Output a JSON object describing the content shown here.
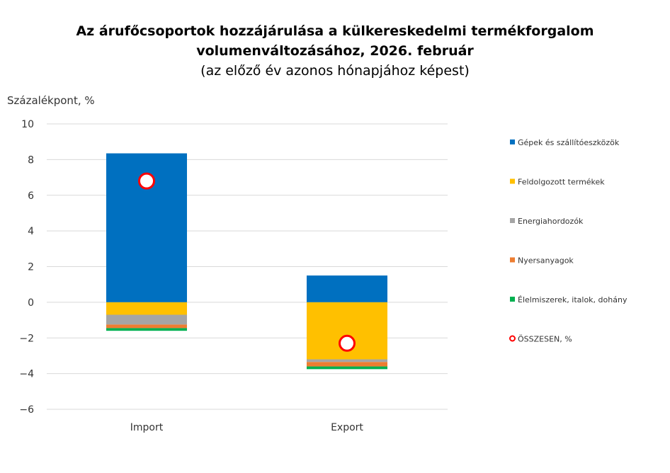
{
  "chart_data": {
    "type": "bar",
    "stacked": true,
    "title": "Az árufőcsoportok hozzájárulása a külkereskedelmi termékforgalom volumenváltozásához, 2026. február",
    "subtitle": "(az előző év azonos hónapjához képest)",
    "ylabel": "Százalékpont, %",
    "xlabel": "",
    "ylim": [
      -6,
      10
    ],
    "yticks": [
      "−6",
      "−4",
      "−2",
      "0",
      "2",
      "4",
      "6",
      "8",
      "10"
    ],
    "ytick_values": [
      -6,
      -4,
      -2,
      0,
      2,
      4,
      6,
      8,
      10
    ],
    "grid": true,
    "legend_position": "right",
    "categories": [
      "Import",
      "Export"
    ],
    "series": [
      {
        "name": "Gépek és szállítóeszközök",
        "color": "#0070C0",
        "values": [
          8.35,
          1.5
        ]
      },
      {
        "name": "Feldolgozott termékek",
        "color": "#FFC000",
        "values": [
          -0.7,
          -3.2
        ]
      },
      {
        "name": "Energiahordozók",
        "color": "#A5A5A5",
        "values": [
          -0.55,
          -0.15
        ]
      },
      {
        "name": "Nyersanyagok",
        "color": "#ED7D31",
        "values": [
          -0.2,
          -0.25
        ]
      },
      {
        "name": "Élelmiszerek, italok, dohány",
        "color": "#00B050",
        "values": [
          -0.15,
          -0.15
        ]
      }
    ],
    "total": {
      "name": "ÖSSZESEN, %",
      "color": "#FF0000",
      "values": [
        6.8,
        -2.3
      ]
    }
  }
}
